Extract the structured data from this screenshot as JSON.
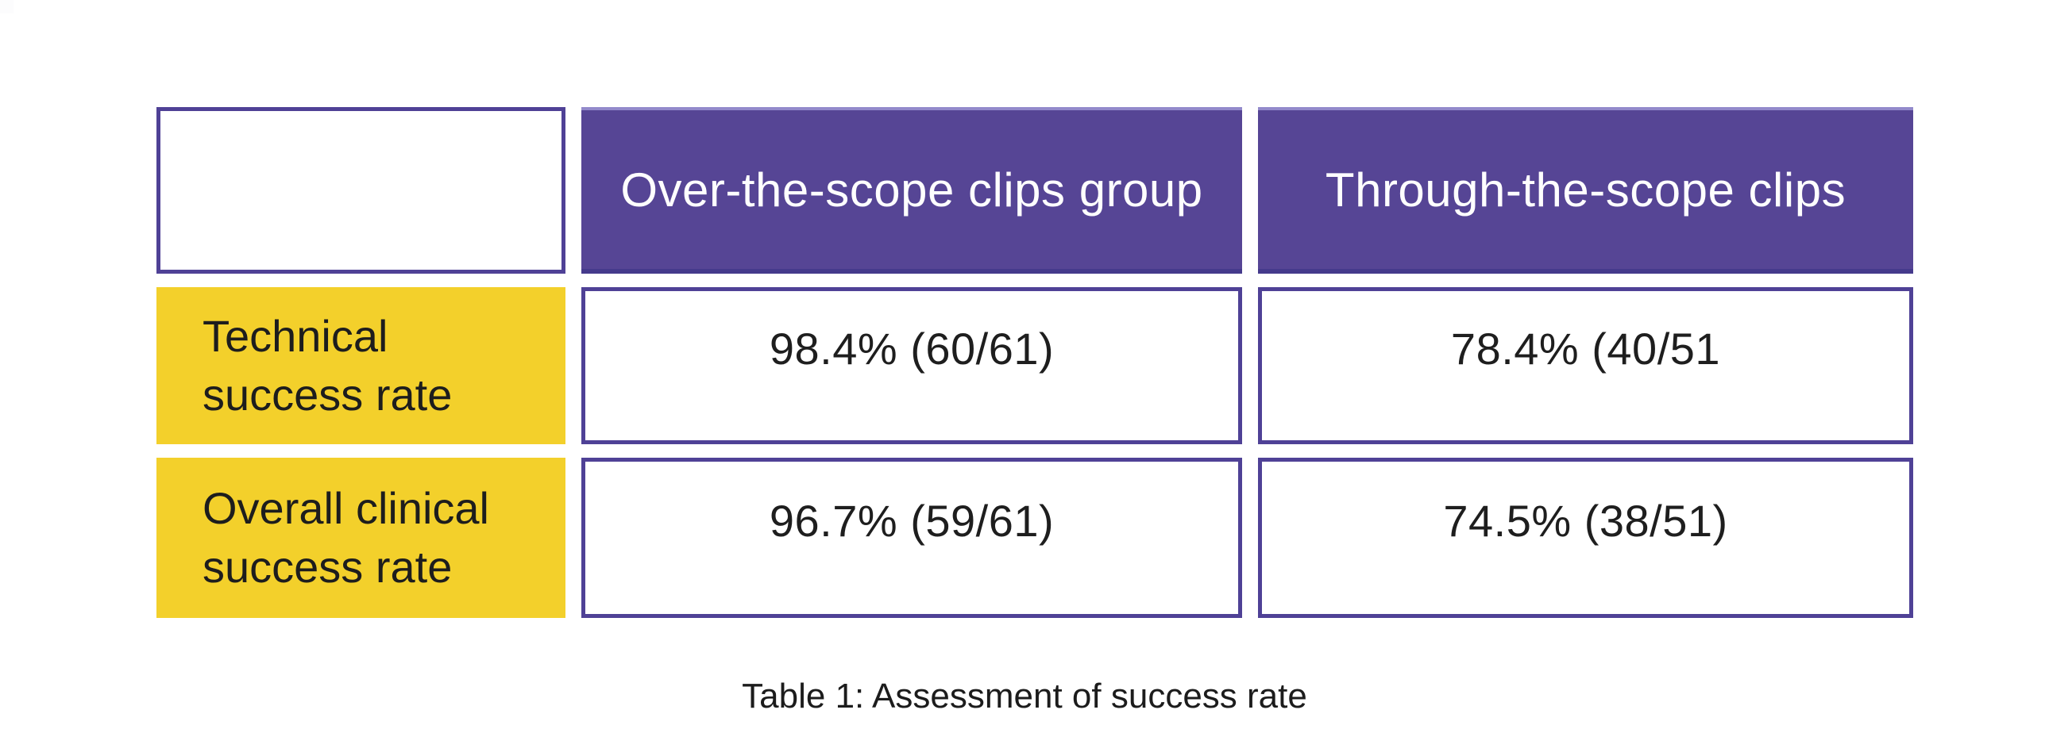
{
  "decor": {
    "corner_square_color": "#fcfcfd"
  },
  "colors": {
    "header_bg": "#564595",
    "header_text": "#fefefe",
    "cell_border": "#4f4196",
    "label_bg": "#f3d02b",
    "body_text": "#1e1e1e",
    "background": "#ffffff"
  },
  "table": {
    "header": {
      "col1": "Over-the-scope clips group",
      "col2": "Through-the-scope clips"
    },
    "rows": [
      {
        "label": "Technical\nsuccess rate",
        "col1": "98.4% (60/61)",
        "col2": "78.4% (40/51"
      },
      {
        "label": "Overall clinical\nsuccess rate",
        "col1": "96.7% (59/61)",
        "col2": "74.5% (38/51)"
      }
    ],
    "caption": "Table 1: Assessment of success rate"
  },
  "chart_data": {
    "type": "table",
    "columns": [
      "",
      "Over-the-scope clips group",
      "Through-the-scope clips"
    ],
    "rows": [
      [
        "Technical success rate",
        "98.4% (60/61)",
        "78.4% (40/51"
      ],
      [
        "Overall clinical success rate",
        "96.7% (59/61)",
        "74.5% (38/51)"
      ]
    ],
    "caption": "Table 1: Assessment of success rate"
  }
}
